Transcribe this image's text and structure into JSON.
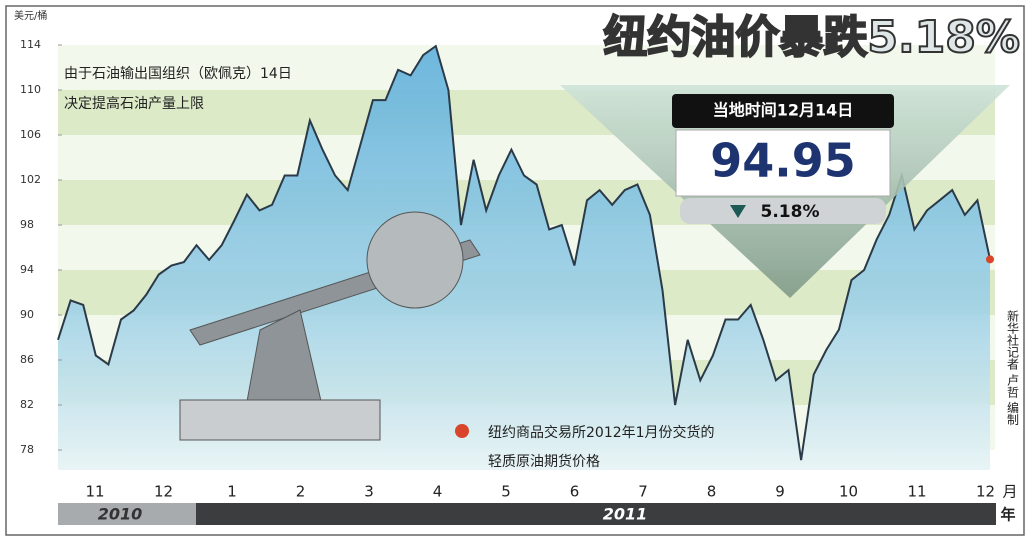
{
  "chart_data": {
    "type": "area",
    "title": "纽约油价暴跌5.18%",
    "y_unit": "美元/桶",
    "annotation": [
      "由于石油输出国组织（欧佩克）14日",
      "决定提高石油产量上限"
    ],
    "callout": {
      "date": "当地时间12月14日",
      "price": "94.95",
      "change": "5.18%"
    },
    "legend": [
      "纽约商品交易所2012年1月份交货的",
      "轻质原油期货价格"
    ],
    "credit": "新华社记者 卢哲 编制",
    "xticks": [
      "11",
      "12",
      "1",
      "2",
      "3",
      "4",
      "5",
      "6",
      "7",
      "8",
      "9",
      "10",
      "11",
      "12"
    ],
    "x_unit": "月",
    "years": [
      "2010",
      "2011"
    ],
    "year_unit": "年",
    "values": [
      87.8,
      91.3,
      90.9,
      86.4,
      85.6,
      89.6,
      90.4,
      91.8,
      93.6,
      94.4,
      94.7,
      96.2,
      94.9,
      96.2,
      98.4,
      100.7,
      99.3,
      99.8,
      102.4,
      102.4,
      107.3,
      104.7,
      102.4,
      101.1,
      105.1,
      109.1,
      109.1,
      111.8,
      111.3,
      113.1,
      113.9,
      110,
      98,
      103.8,
      99.3,
      102.4,
      104.7,
      102.4,
      101.6,
      97.6,
      98,
      94.4,
      100.2,
      101.1,
      99.8,
      101.1,
      101.6,
      98.9,
      92.2,
      82,
      87.8,
      84.2,
      86.4,
      89.6,
      89.6,
      90.9,
      87.8,
      84.2,
      85.1,
      77.1,
      84.7,
      86.9,
      88.7,
      93.1,
      94,
      96.7,
      98.9,
      102.4,
      97.6,
      99.3,
      100.2,
      101.1,
      98.9,
      100.2,
      94.95
    ],
    "color": "#3a8fc0",
    "ylim": [
      78,
      114
    ],
    "yticks": [
      78,
      82,
      86,
      90,
      94,
      98,
      102,
      106,
      110,
      114
    ]
  }
}
